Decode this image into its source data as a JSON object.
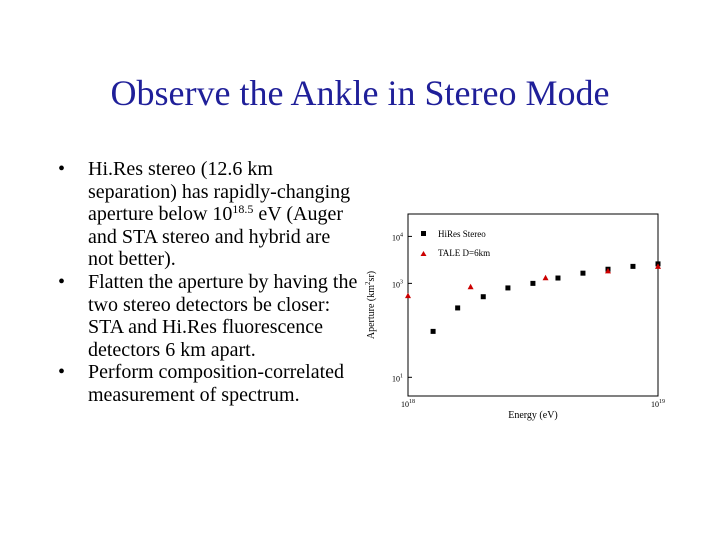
{
  "slide": {
    "title": "Observe the Ankle in Stereo Mode",
    "bullets": [
      {
        "bullet_symbol": "•",
        "text_before_exponent": "Hi.Res stereo (12.6 km separation) has rapidly-changing aperture below 10",
        "exponent": "18.5",
        "text_after_exponent": " eV (Auger and STA stereo and hybrid are not better)."
      },
      {
        "bullet_symbol": "•",
        "text": "Flatten the aperture by having the two stereo detectors be closer:  STA and Hi.Res fluorescence detectors 6 km apart."
      },
      {
        "bullet_symbol": "•",
        "text": "Perform composition-correlated measurement of spectrum."
      }
    ]
  },
  "chart_data": {
    "type": "scatter",
    "xlabel": "Energy (eV)",
    "ylabel": "Aperture (km²sr)",
    "ylabel_base": "Aperture (km",
    "ylabel_exp": "2",
    "ylabel_tail": "sr)",
    "x_scale": "log",
    "y_scale": "log",
    "xlim": [
      1e+18,
      1e+19
    ],
    "ylim": [
      4,
      30000
    ],
    "x_ticks": [
      {
        "value": 1e+18,
        "base": "10",
        "exp": "18"
      },
      {
        "value": 1e+19,
        "base": "10",
        "exp": "19"
      }
    ],
    "y_ticks": [
      {
        "value": 10,
        "base": "10",
        "exp": "1"
      },
      {
        "value": 1000,
        "base": "10",
        "exp": "3"
      },
      {
        "value": 10000,
        "base": "10",
        "exp": "4"
      }
    ],
    "legend_position": "top-left",
    "series": [
      {
        "name": "HiRes  Stereo",
        "marker": "square",
        "color": "#000000",
        "x": [
          1.26e+18,
          1.58e+18,
          2e+18,
          2.51e+18,
          3.16e+18,
          3.98e+18,
          5.01e+18,
          6.31e+18,
          7.94e+18,
          1e+19
        ],
        "y": [
          95,
          300,
          520,
          800,
          1000,
          1300,
          1650,
          2000,
          2300,
          2600
        ]
      },
      {
        "name": "TALE  D=6km",
        "marker": "triangle",
        "color": "#cc0000",
        "x": [
          1e+18,
          1.78e+18,
          3.55e+18,
          6.31e+18,
          1e+19
        ],
        "y": [
          550,
          850,
          1320,
          1850,
          2300
        ]
      }
    ]
  }
}
